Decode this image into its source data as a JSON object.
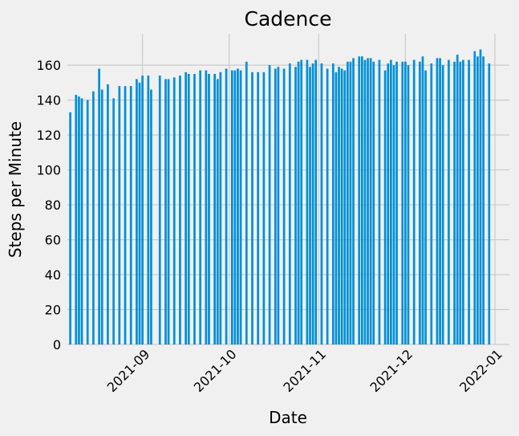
{
  "chart_data": {
    "type": "bar",
    "title": "Cadence",
    "xlabel": "Date",
    "ylabel": "Steps per Minute",
    "ylim": [
      0,
      178
    ],
    "xlim": [
      "2021-08-06",
      "2022-01-06"
    ],
    "grid": true,
    "bar_color": "#008fd5",
    "background_color": "#f0f0f0",
    "grid_color": "#cbcbcb",
    "y_ticks": [
      0,
      20,
      40,
      60,
      80,
      100,
      120,
      140,
      160
    ],
    "x_ticks": [
      "2021-09-01",
      "2021-10-01",
      "2021-11-01",
      "2021-12-01",
      "2022-01-01"
    ],
    "x_tick_labels": [
      "2021-09",
      "2021-10",
      "2021-11",
      "2021-12",
      "2022-01"
    ],
    "x": [
      "2021-08-07",
      "2021-08-09",
      "2021-08-10",
      "2021-08-11",
      "2021-08-13",
      "2021-08-15",
      "2021-08-17",
      "2021-08-18",
      "2021-08-20",
      "2021-08-22",
      "2021-08-24",
      "2021-08-26",
      "2021-08-28",
      "2021-08-30",
      "2021-08-31",
      "2021-09-01",
      "2021-09-03",
      "2021-09-04",
      "2021-09-07",
      "2021-09-09",
      "2021-09-10",
      "2021-09-12",
      "2021-09-14",
      "2021-09-16",
      "2021-09-17",
      "2021-09-19",
      "2021-09-21",
      "2021-09-23",
      "2021-09-24",
      "2021-09-26",
      "2021-09-27",
      "2021-09-28",
      "2021-09-30",
      "2021-10-02",
      "2021-10-03",
      "2021-10-04",
      "2021-10-05",
      "2021-10-07",
      "2021-10-09",
      "2021-10-11",
      "2021-10-13",
      "2021-10-15",
      "2021-10-17",
      "2021-10-18",
      "2021-10-20",
      "2021-10-22",
      "2021-10-24",
      "2021-10-25",
      "2021-10-26",
      "2021-10-28",
      "2021-10-29",
      "2021-10-30",
      "2021-10-31",
      "2021-11-02",
      "2021-11-04",
      "2021-11-06",
      "2021-11-07",
      "2021-11-08",
      "2021-11-09",
      "2021-11-10",
      "2021-11-11",
      "2021-11-12",
      "2021-11-13",
      "2021-11-15",
      "2021-11-16",
      "2021-11-17",
      "2021-11-18",
      "2021-11-19",
      "2021-11-20",
      "2021-11-22",
      "2021-11-24",
      "2021-11-25",
      "2021-11-26",
      "2021-11-27",
      "2021-11-28",
      "2021-11-30",
      "2021-12-01",
      "2021-12-02",
      "2021-12-04",
      "2021-12-06",
      "2021-12-07",
      "2021-12-08",
      "2021-12-10",
      "2021-12-12",
      "2021-12-13",
      "2021-12-14",
      "2021-12-16",
      "2021-12-18",
      "2021-12-19",
      "2021-12-20",
      "2021-12-21",
      "2021-12-23",
      "2021-12-25",
      "2021-12-26",
      "2021-12-27",
      "2021-12-28",
      "2021-12-30"
    ],
    "values": [
      133,
      143,
      142,
      141,
      140,
      145,
      158,
      146,
      149,
      141,
      148,
      148,
      148,
      152,
      150,
      154,
      154,
      146,
      154,
      152,
      152,
      153,
      154,
      156,
      155,
      155,
      157,
      157,
      155,
      155,
      152,
      156,
      158,
      157,
      157,
      158,
      157,
      162,
      156,
      156,
      156,
      160,
      158,
      159,
      158,
      161,
      159,
      162,
      163,
      163,
      159,
      161,
      163,
      161,
      158,
      161,
      156,
      159,
      158,
      157,
      162,
      162,
      164,
      165,
      165,
      163,
      164,
      164,
      162,
      163,
      157,
      161,
      163,
      160,
      162,
      162,
      162,
      160,
      163,
      162,
      165,
      157,
      161,
      164,
      164,
      160,
      163,
      162,
      166,
      162,
      163,
      163,
      168,
      165,
      169,
      165,
      161
    ]
  }
}
